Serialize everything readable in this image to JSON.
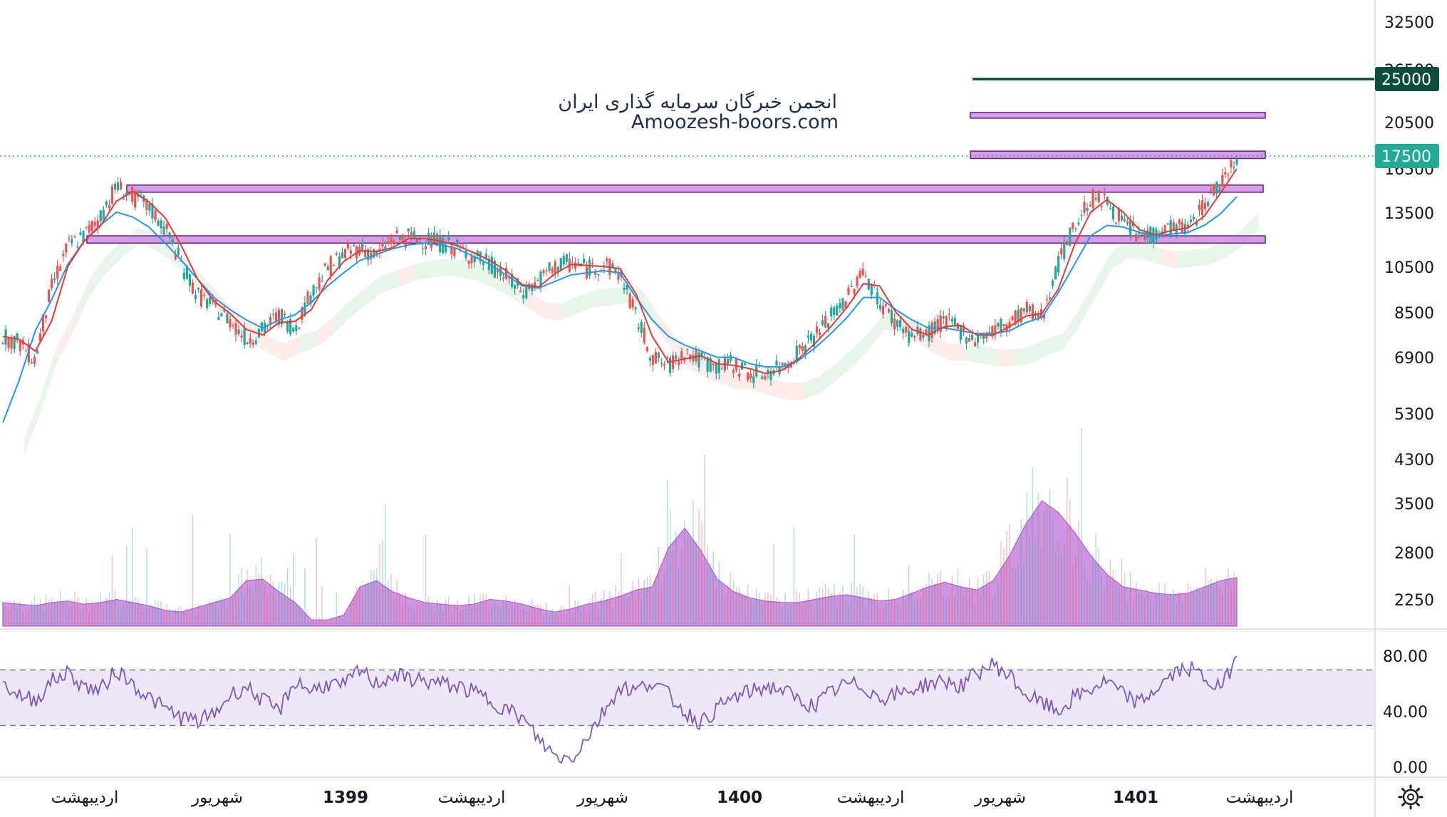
{
  "watermark": {
    "line1": "انجمن خبرگان سرمایه گذاری ایران",
    "line2": "Amoozesh-boors.com"
  },
  "colors": {
    "up": "#26a69a",
    "down": "#ef5350",
    "ema_fast": "#e53935",
    "ema_slow": "#2196f3",
    "zone_fill": "#c77ee0",
    "zone_stroke": "#6a1b7a",
    "target_line": "#0b4d3b",
    "last_price": "#22ab94",
    "volume": "#b45bd1",
    "rsi_line": "#7e57c2",
    "rsi_band": "#ede7f6",
    "cloud_green": "#e8f5e9",
    "cloud_red": "#fdecea"
  },
  "price_axis": {
    "ticks": [
      "32500",
      "26500",
      "20500",
      "16500",
      "13500",
      "10500",
      "8500",
      "6900",
      "5300",
      "4300",
      "3500",
      "2800",
      "2250"
    ]
  },
  "rsi_axis": {
    "ticks": [
      "80.00",
      "40.00",
      "0.00"
    ]
  },
  "time_axis": {
    "labels": [
      {
        "text": "اردیبهشت",
        "bold": false
      },
      {
        "text": "شهریور",
        "bold": false
      },
      {
        "text": "1399",
        "bold": true
      },
      {
        "text": "اردیبهشت",
        "bold": false
      },
      {
        "text": "شهریور",
        "bold": false
      },
      {
        "text": "1400",
        "bold": true
      },
      {
        "text": "اردیبهشت",
        "bold": false
      },
      {
        "text": "شهریور",
        "bold": false
      },
      {
        "text": "1401",
        "bold": true
      },
      {
        "text": "اردیبهشت",
        "bold": false
      }
    ]
  },
  "badges": {
    "target": "25000",
    "last": "17500"
  },
  "chart_data": {
    "type": "line",
    "price_scale": "log",
    "ylim": [
      2000,
      34000
    ],
    "target_level": 25000,
    "last_price": 17500,
    "zones": [
      {
        "low": 11700,
        "high": 12100
      },
      {
        "low": 14800,
        "high": 15300
      },
      {
        "low": 17300,
        "high": 17900
      },
      {
        "low": 20900,
        "high": 21400
      }
    ],
    "series": [
      {
        "values": [
          7600,
          7400,
          6800,
          9500,
          11500,
          12100,
          13200,
          15200,
          14500,
          13800,
          12500,
          10600,
          9200,
          8700,
          8200,
          7500,
          7800,
          8400,
          7900,
          9300,
          10400,
          11100,
          11500,
          11000,
          11900,
          12000,
          11900,
          11700,
          11400,
          11000,
          10600,
          10000,
          9300,
          9800,
          10500,
          10700,
          10400,
          10600,
          10200,
          8300,
          6900,
          6600,
          7100,
          6800,
          6600,
          6700,
          6400,
          6400,
          6600,
          7100,
          7600,
          8300,
          9100,
          10300,
          8900,
          8100,
          7600,
          7700,
          8200,
          7800,
          7500,
          7800,
          8100,
          8600,
          8300,
          10600,
          12600,
          14400,
          14200,
          12800,
          12100,
          12200,
          12600,
          12500,
          14000,
          15500,
          17500
        ]
      },
      {
        "values": [
          5100,
          6200,
          7800,
          9000,
          10600,
          11800,
          12700,
          13500,
          13200,
          12600,
          11700,
          10800,
          9900,
          9100,
          8600,
          8200,
          7900,
          8200,
          8400,
          8900,
          9600,
          10200,
          10800,
          11100,
          11400,
          11600,
          11700,
          11600,
          11400,
          11000,
          10600,
          10100,
          9600,
          9500,
          9800,
          10100,
          10200,
          10300,
          10200,
          9100,
          8200,
          7600,
          7300,
          7100,
          6900,
          6900,
          6700,
          6600,
          6600,
          6800,
          7200,
          7700,
          8300,
          9100,
          9100,
          8600,
          8200,
          7900,
          7900,
          7800,
          7700,
          7700,
          7800,
          8100,
          8300,
          9300,
          10600,
          12100,
          12700,
          12600,
          12300,
          12100,
          12200,
          12300,
          12700,
          13400,
          14500
        ]
      }
    ],
    "rsi": {
      "band": [
        30,
        70
      ],
      "values": [
        60,
        52,
        48,
        62,
        68,
        58,
        55,
        70,
        60,
        50,
        42,
        36,
        33,
        38,
        52,
        58,
        48,
        40,
        62,
        55,
        60,
        58,
        70,
        60,
        66,
        64,
        62,
        60,
        58,
        54,
        48,
        42,
        35,
        20,
        8,
        6,
        22,
        40,
        58,
        55,
        62,
        52,
        40,
        32,
        42,
        50,
        54,
        58,
        56,
        48,
        44,
        54,
        60,
        58,
        50,
        52,
        56,
        60,
        62,
        58,
        68,
        74,
        66,
        52,
        46,
        40,
        50,
        56,
        62,
        52,
        46,
        56,
        66,
        72,
        64,
        56,
        80
      ]
    },
    "volume": {
      "values": [
        0.3,
        0.28,
        0.26,
        0.3,
        0.32,
        0.28,
        0.3,
        0.34,
        0.3,
        0.26,
        0.2,
        0.18,
        0.24,
        0.3,
        0.36,
        0.58,
        0.6,
        0.44,
        0.3,
        0.08,
        0.08,
        0.14,
        0.5,
        0.58,
        0.44,
        0.36,
        0.3,
        0.28,
        0.26,
        0.28,
        0.34,
        0.32,
        0.28,
        0.22,
        0.18,
        0.22,
        0.28,
        0.32,
        0.38,
        0.46,
        0.5,
        1.0,
        1.25,
        0.96,
        0.6,
        0.44,
        0.36,
        0.32,
        0.3,
        0.3,
        0.34,
        0.38,
        0.4,
        0.36,
        0.32,
        0.34,
        0.42,
        0.5,
        0.56,
        0.5,
        0.46,
        0.58,
        0.9,
        1.3,
        1.6,
        1.45,
        1.2,
        0.9,
        0.66,
        0.5,
        0.46,
        0.42,
        0.4,
        0.42,
        0.5,
        0.58,
        0.62
      ]
    }
  }
}
